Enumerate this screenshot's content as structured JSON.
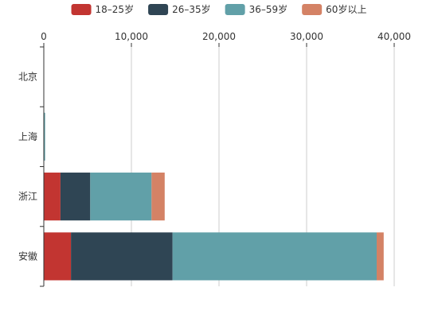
{
  "chart_data": {
    "type": "bar",
    "orientation": "horizontal",
    "stacked": true,
    "categories": [
      "北京",
      "上海",
      "浙江",
      "安徽"
    ],
    "series": [
      {
        "name": "18–25岁",
        "color": "#c23531",
        "values": [
          0,
          0,
          1900,
          3100
        ]
      },
      {
        "name": "26–35岁",
        "color": "#2f4554",
        "values": [
          0,
          0,
          3400,
          11600
        ]
      },
      {
        "name": "36–59岁",
        "color": "#61a0a8",
        "values": [
          0,
          150,
          7000,
          23300
        ]
      },
      {
        "name": "60岁以上",
        "color": "#d48265",
        "values": [
          0,
          0,
          1500,
          800
        ]
      }
    ],
    "xlim": [
      0,
      40000
    ],
    "x_ticks": [
      0,
      10000,
      20000,
      30000,
      40000
    ],
    "x_tick_labels": [
      "0",
      "10,000",
      "20,000",
      "30,000",
      "40,000"
    ],
    "x_axis_position": "top",
    "grid": true,
    "legend_position": "top-center"
  }
}
